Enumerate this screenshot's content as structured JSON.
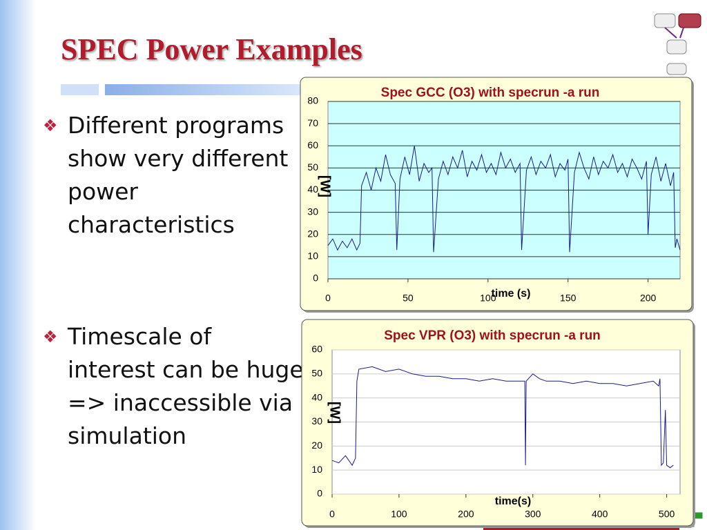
{
  "slide": {
    "title": "SPEC Power Examples",
    "bullets": [
      "Different programs show very different power characteristics",
      "Timescale of interest can be huge => inaccessible via simulation"
    ]
  },
  "chart_data": [
    {
      "type": "line",
      "title": "Spec GCC (O3) with specrun -a run",
      "x_label": "time (s)",
      "y_label": "[W]",
      "xlim": [
        0,
        220
      ],
      "xticks": [
        0,
        50,
        100,
        150,
        200
      ],
      "ylim": [
        0,
        80
      ],
      "yticks": [
        0,
        10,
        20,
        30,
        40,
        50,
        60,
        70,
        80
      ],
      "grid": true,
      "series": [
        {
          "color": "#1a1a8c",
          "x": [
            0,
            3,
            6,
            9,
            12,
            15,
            18,
            20,
            21,
            24,
            27,
            30,
            33,
            36,
            39,
            42,
            43,
            45,
            48,
            51,
            54,
            57,
            60,
            63,
            65,
            66,
            69,
            72,
            75,
            78,
            81,
            84,
            87,
            90,
            93,
            96,
            99,
            102,
            105,
            108,
            111,
            114,
            117,
            120,
            121,
            124,
            127,
            130,
            133,
            136,
            139,
            142,
            145,
            148,
            150,
            151,
            154,
            157,
            160,
            163,
            166,
            169,
            172,
            175,
            178,
            181,
            184,
            187,
            190,
            193,
            196,
            199,
            200,
            202,
            205,
            208,
            211,
            214,
            216,
            217,
            218,
            220
          ],
          "values": [
            15,
            18,
            13,
            17,
            14,
            18,
            13,
            16,
            42,
            48,
            40,
            50,
            44,
            56,
            47,
            43,
            13,
            45,
            55,
            47,
            60,
            44,
            52,
            48,
            50,
            12,
            45,
            53,
            47,
            55,
            50,
            58,
            46,
            53,
            49,
            56,
            48,
            52,
            47,
            57,
            50,
            54,
            48,
            52,
            13,
            49,
            55,
            47,
            53,
            50,
            56,
            46,
            52,
            49,
            54,
            12,
            48,
            57,
            50,
            45,
            55,
            47,
            53,
            50,
            56,
            48,
            52,
            46,
            54,
            50,
            45,
            53,
            20,
            47,
            55,
            44,
            52,
            42,
            48,
            14,
            18,
            13
          ]
        }
      ]
    },
    {
      "type": "line",
      "title": "Spec VPR (O3) with specrun -a run",
      "x_label": "time(s)",
      "y_label": "[W]",
      "xlim": [
        0,
        520
      ],
      "xticks": [
        0,
        100,
        200,
        300,
        400,
        500
      ],
      "ylim": [
        0,
        60
      ],
      "yticks": [
        0,
        10,
        20,
        30,
        40,
        50,
        60
      ],
      "grid": true,
      "series": [
        {
          "color": "#1a1a8c",
          "x": [
            0,
            10,
            20,
            30,
            35,
            37,
            40,
            60,
            80,
            100,
            120,
            140,
            160,
            180,
            200,
            220,
            240,
            260,
            280,
            288,
            289,
            290,
            300,
            310,
            320,
            340,
            360,
            380,
            400,
            420,
            440,
            460,
            480,
            488,
            490,
            492,
            495,
            498,
            500,
            505,
            510
          ],
          "values": [
            14,
            13,
            16,
            12,
            15,
            47,
            52,
            53,
            51,
            52,
            50,
            49,
            49,
            48,
            48,
            47,
            48,
            47,
            47,
            47,
            12,
            47,
            50,
            48,
            47,
            47,
            46,
            47,
            46,
            46,
            45,
            46,
            47,
            45,
            48,
            12,
            13,
            35,
            12,
            11,
            12
          ]
        }
      ]
    }
  ]
}
